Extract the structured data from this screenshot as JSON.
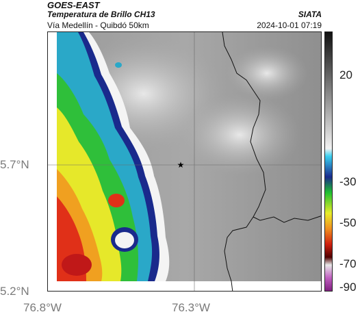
{
  "header": {
    "satellite": "GOES-EAST",
    "product": "Temperatura de Brillo CH13",
    "route": "Vía Medellín - Quibdó 50km",
    "agency": "SIATA",
    "datetime": "2024-10-01 07:19"
  },
  "map": {
    "lat_ticks": [
      "5.7°N",
      "5.2°N"
    ],
    "lon_ticks": [
      "76.8°W",
      "76.3°W"
    ],
    "colorbar_ticks": [
      "20",
      "-30",
      "-50",
      "-70",
      "-90"
    ],
    "marker": "star"
  }
}
